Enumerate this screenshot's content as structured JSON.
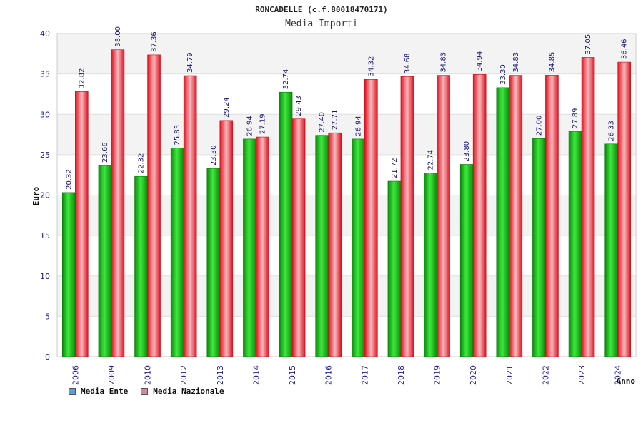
{
  "chart_data": {
    "type": "bar",
    "title": "RONCADELLE (c.f.80018470171)",
    "subtitle": "Media Importi",
    "ylabel": "Euro",
    "xlabel": "Anno",
    "ylim": [
      0,
      40
    ],
    "yticks": [
      0,
      5,
      10,
      15,
      20,
      25,
      30,
      35,
      40
    ],
    "categories": [
      "2006",
      "2009",
      "2010",
      "2012",
      "2013",
      "2014",
      "2015",
      "2016",
      "2017",
      "2018",
      "2019",
      "2020",
      "2021",
      "2022",
      "2023",
      "2024"
    ],
    "series": [
      {
        "name": "Media Ente",
        "color": "#1db81d",
        "values": [
          20.32,
          23.66,
          22.32,
          25.83,
          23.3,
          26.94,
          32.74,
          27.4,
          26.94,
          21.72,
          22.74,
          23.8,
          33.3,
          27.0,
          27.89,
          26.33
        ],
        "labels": [
          "20.32",
          "23.66",
          "22.32",
          "25.83",
          "23.30",
          "26.94",
          "32.74",
          "27.40",
          "26.94",
          "21.72",
          "22.74",
          "23.80",
          "33.30",
          "27.00",
          "27.89",
          "26.33"
        ]
      },
      {
        "name": "Media Nazionale",
        "color": "#e81c2c",
        "values": [
          32.82,
          38.0,
          37.36,
          34.79,
          29.24,
          27.19,
          29.43,
          27.71,
          34.32,
          34.68,
          34.83,
          34.94,
          34.83,
          34.85,
          37.05,
          36.46
        ],
        "labels": [
          "32.82",
          "38.00",
          "37.36",
          "34.79",
          "29.24",
          "27.19",
          "29.43",
          "27.71",
          "34.32",
          "34.68",
          "34.83",
          "34.94",
          "34.83",
          "34.85",
          "37.05",
          "36.46"
        ]
      }
    ],
    "legend": {
      "position": "bottom-left",
      "items": [
        {
          "label": "Media Ente",
          "color": "#5b9be0"
        },
        {
          "label": "Media Nazionale",
          "color": "#d9869a"
        }
      ]
    },
    "grid": true
  }
}
